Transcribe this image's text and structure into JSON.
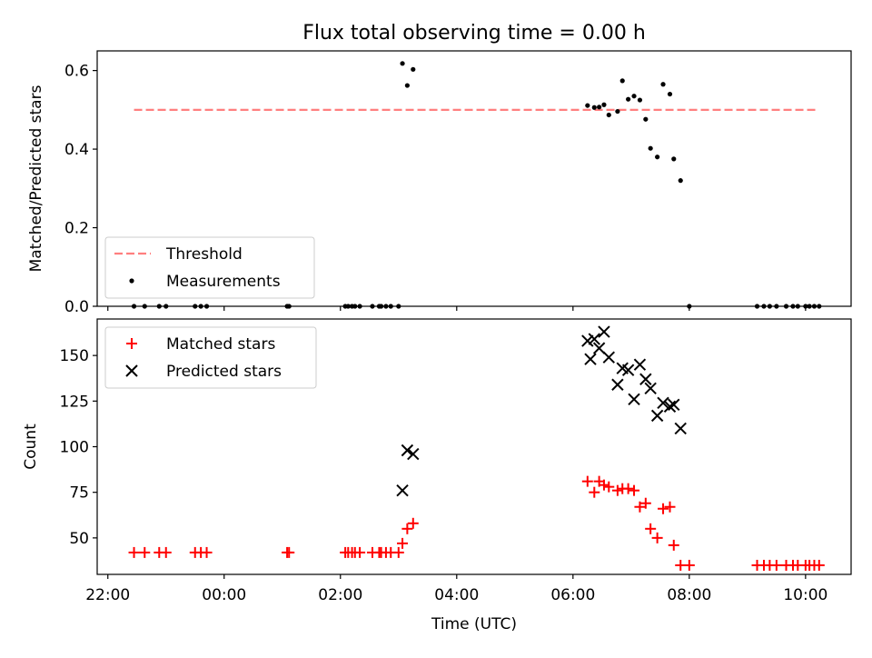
{
  "chart_data": [
    {
      "type": "scatter",
      "title": "Flux total observing time = 0.00 h",
      "ylabel": "Matched/Predicted stars",
      "xlabel": "",
      "ylim": [
        0,
        0.65
      ],
      "yticks": [
        0.0,
        0.2,
        0.4,
        0.6
      ],
      "ytick_labels": [
        "0.0",
        "0.2",
        "0.4",
        "0.6"
      ],
      "grid": false,
      "legend_position": "lower-left",
      "series": [
        {
          "name": "Threshold",
          "kind": "dashed-line",
          "color": "#ff7f7f",
          "x": [
            "22:27",
            "10:10"
          ],
          "y": [
            0.5,
            0.5
          ]
        },
        {
          "name": "Measurements",
          "kind": "dot",
          "color": "#000000",
          "x": [
            "22:27",
            "22:38",
            "22:53",
            "23:00",
            "23:30",
            "23:36",
            "23:42",
            "01:05",
            "01:07",
            "02:05",
            "02:08",
            "02:12",
            "02:15",
            "02:20",
            "02:33",
            "02:40",
            "02:42",
            "02:47",
            "02:52",
            "03:00",
            "03:04",
            "03:09",
            "03:15",
            "06:15",
            "06:22",
            "06:27",
            "06:32",
            "06:37",
            "06:46",
            "06:51",
            "06:57",
            "07:03",
            "07:09",
            "07:15",
            "07:20",
            "07:27",
            "07:33",
            "07:40",
            "07:44",
            "07:51",
            "08:00",
            "09:10",
            "09:17",
            "09:23",
            "09:30",
            "09:40",
            "09:47",
            "09:52",
            "10:00",
            "10:04",
            "10:09",
            "10:14"
          ],
          "y": [
            0.0,
            0.0,
            0.0,
            0.0,
            0.0,
            0.0,
            0.0,
            0.0,
            0.0,
            0.0,
            0.0,
            0.0,
            0.0,
            0.0,
            0.0,
            0.0,
            0.0,
            0.0,
            0.0,
            0.0,
            0.618,
            0.562,
            0.603,
            0.511,
            0.506,
            0.507,
            0.513,
            0.487,
            0.496,
            0.574,
            0.527,
            0.535,
            0.525,
            0.476,
            0.402,
            0.38,
            0.565,
            0.54,
            0.375,
            0.32,
            0.0,
            0.0,
            0.0,
            0.0,
            0.0,
            0.0,
            0.0,
            0.0,
            0.0,
            0.0,
            0.0,
            0.0
          ]
        }
      ]
    },
    {
      "type": "scatter",
      "title": "",
      "ylabel": "Count",
      "xlabel": "Time (UTC)",
      "ylim": [
        30,
        170
      ],
      "yticks": [
        50,
        75,
        100,
        125,
        150
      ],
      "ytick_labels": [
        "50",
        "75",
        "100",
        "125",
        "150"
      ],
      "xtick_labels": [
        "22:00",
        "00:00",
        "02:00",
        "04:00",
        "06:00",
        "08:00",
        "10:00"
      ],
      "grid": false,
      "legend_position": "upper-left",
      "series": [
        {
          "name": "Matched stars",
          "kind": "plus",
          "color": "#ff0000",
          "x": [
            "22:27",
            "22:38",
            "22:53",
            "23:00",
            "23:30",
            "23:36",
            "23:42",
            "01:05",
            "01:07",
            "02:05",
            "02:08",
            "02:12",
            "02:15",
            "02:20",
            "02:33",
            "02:40",
            "02:42",
            "02:47",
            "02:52",
            "03:00",
            "03:04",
            "03:09",
            "03:15",
            "06:15",
            "06:22",
            "06:27",
            "06:32",
            "06:37",
            "06:46",
            "06:51",
            "06:57",
            "07:03",
            "07:09",
            "07:15",
            "07:20",
            "07:27",
            "07:33",
            "07:40",
            "07:44",
            "07:51",
            "08:00",
            "09:10",
            "09:17",
            "09:23",
            "09:30",
            "09:40",
            "09:47",
            "09:52",
            "10:00",
            "10:04",
            "10:09",
            "10:14"
          ],
          "y": [
            42,
            42,
            42,
            42,
            42,
            42,
            42,
            42,
            42,
            42,
            42,
            42,
            42,
            42,
            42,
            42,
            42,
            42,
            42,
            42,
            47,
            55,
            58,
            81,
            75,
            81,
            79,
            78,
            76,
            77,
            77,
            76,
            67,
            69,
            55,
            50,
            66,
            67,
            46,
            35,
            35,
            35,
            35,
            35,
            35,
            35,
            35,
            35,
            35,
            35,
            35,
            35
          ]
        },
        {
          "name": "Predicted stars",
          "kind": "x",
          "color": "#000000",
          "x": [
            "03:04",
            "03:09",
            "03:15",
            "06:15",
            "06:18",
            "06:22",
            "06:27",
            "06:32",
            "06:37",
            "06:46",
            "06:51",
            "06:57",
            "07:03",
            "07:09",
            "07:15",
            "07:20",
            "07:27",
            "07:33",
            "07:40",
            "07:44",
            "07:51"
          ],
          "y": [
            76,
            98,
            96,
            158,
            148,
            159,
            154,
            163,
            149,
            134,
            143,
            142,
            126,
            145,
            137,
            132,
            117,
            124,
            122,
            123,
            110
          ]
        }
      ]
    }
  ]
}
